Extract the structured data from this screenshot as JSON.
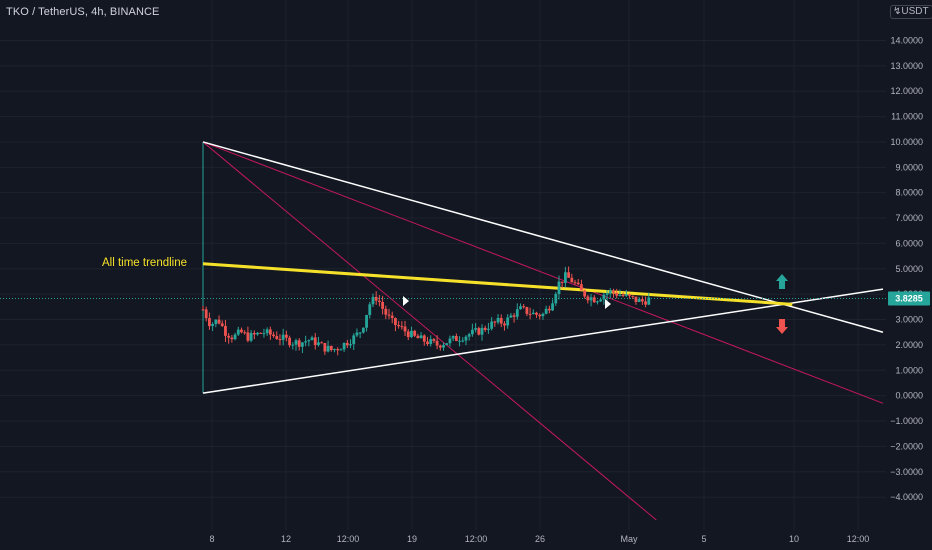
{
  "header": {
    "symbol_title": "TKO / TetherUS, 4h, BINANCE",
    "currency": "USDT"
  },
  "annotations": {
    "trendline_label": "All time trendline"
  },
  "last_price": {
    "label": "3.8285",
    "value": 3.8285
  },
  "colors": {
    "background": "#131722",
    "grid": "#1e222d",
    "candle_up": "#26a69a",
    "candle_down": "#ef5350",
    "trendline_yellow": "#f5e12a",
    "triangle_lines": "#ffffff",
    "fan_lines": "#c2185b",
    "price_tag": "#26a69a",
    "arrow_up": "#26a69a",
    "arrow_down": "#ef5350"
  },
  "chart_data": {
    "type": "candlestick",
    "title": "TKO / TetherUS, 4h, BINANCE",
    "y_axis": {
      "unit": "USDT",
      "range": [
        -4.9,
        15.2
      ],
      "ticks": [
        {
          "value": 14,
          "label": "14.0000"
        },
        {
          "value": 13,
          "label": "13.0000"
        },
        {
          "value": 12,
          "label": "12.0000"
        },
        {
          "value": 11,
          "label": "11.0000"
        },
        {
          "value": 10,
          "label": "10.0000"
        },
        {
          "value": 9,
          "label": "9.0000"
        },
        {
          "value": 8,
          "label": "8.0000"
        },
        {
          "value": 7,
          "label": "7.0000"
        },
        {
          "value": 6,
          "label": "6.0000"
        },
        {
          "value": 5,
          "label": "5.0000"
        },
        {
          "value": 4,
          "label": "4.0000"
        },
        {
          "value": 3,
          "label": "3.0000"
        },
        {
          "value": 2,
          "label": "2.0000"
        },
        {
          "value": 1,
          "label": "1.0000"
        },
        {
          "value": 0,
          "label": "0.0000"
        },
        {
          "value": -1,
          "label": "−1.0000"
        },
        {
          "value": -2,
          "label": "−2.0000"
        },
        {
          "value": -3,
          "label": "−3.0000"
        },
        {
          "value": -4,
          "label": "−4.0000"
        }
      ]
    },
    "x_axis": {
      "labels": [
        "8",
        "12",
        "12:00",
        "19",
        "12:00",
        "26",
        "May",
        "5",
        "10",
        "12:00"
      ]
    },
    "price_path": [
      [
        0,
        3.4
      ],
      [
        2,
        2.8
      ],
      [
        4,
        3.0
      ],
      [
        6,
        2.5
      ],
      [
        8,
        2.3
      ],
      [
        10,
        2.5
      ],
      [
        12,
        2.3
      ],
      [
        14,
        2.4
      ],
      [
        16,
        2.5
      ],
      [
        18,
        2.4
      ],
      [
        20,
        2.3
      ],
      [
        22,
        2.2
      ],
      [
        24,
        2.1
      ],
      [
        26,
        2.1
      ],
      [
        28,
        2.2
      ],
      [
        30,
        2.1
      ],
      [
        32,
        1.9
      ],
      [
        34,
        1.8
      ],
      [
        36,
        1.9
      ],
      [
        38,
        2.1
      ],
      [
        40,
        2.3
      ],
      [
        42,
        2.6
      ],
      [
        44,
        3.6
      ],
      [
        46,
        3.9
      ],
      [
        48,
        3.3
      ],
      [
        50,
        2.9
      ],
      [
        52,
        2.7
      ],
      [
        54,
        2.5
      ],
      [
        56,
        2.3
      ],
      [
        58,
        2.2
      ],
      [
        60,
        2.1
      ],
      [
        62,
        2.0
      ],
      [
        64,
        2.1
      ],
      [
        66,
        2.2
      ],
      [
        68,
        2.3
      ],
      [
        70,
        2.4
      ],
      [
        72,
        2.5
      ],
      [
        74,
        2.6
      ],
      [
        76,
        2.8
      ],
      [
        78,
        2.9
      ],
      [
        80,
        2.9
      ],
      [
        82,
        3.2
      ],
      [
        84,
        3.4
      ],
      [
        86,
        3.3
      ],
      [
        88,
        3.2
      ],
      [
        90,
        3.2
      ],
      [
        92,
        3.6
      ],
      [
        94,
        4.4
      ],
      [
        96,
        4.7
      ],
      [
        98,
        4.5
      ],
      [
        100,
        4.1
      ],
      [
        102,
        3.9
      ],
      [
        104,
        3.8
      ],
      [
        106,
        4.0
      ],
      [
        108,
        4.1
      ],
      [
        110,
        4.0
      ],
      [
        112,
        3.9
      ],
      [
        114,
        3.8
      ],
      [
        116,
        3.7
      ],
      [
        118,
        3.8
      ]
    ],
    "drawings": {
      "triangle_upper": {
        "from": [
          0,
          10.0
        ],
        "to": [
          180,
          2.5
        ]
      },
      "triangle_lower": {
        "from": [
          0,
          0.1
        ],
        "to": [
          180,
          4.2
        ]
      },
      "fan_line_steep": {
        "from": [
          0,
          10.0
        ],
        "to": [
          120,
          -4.9
        ]
      },
      "fan_line_shallow": {
        "from": [
          0,
          10.0
        ],
        "to": [
          180,
          -0.3
        ]
      },
      "trendline_all_time": {
        "from": [
          0,
          5.2
        ],
        "to": [
          156,
          3.6
        ]
      }
    }
  }
}
